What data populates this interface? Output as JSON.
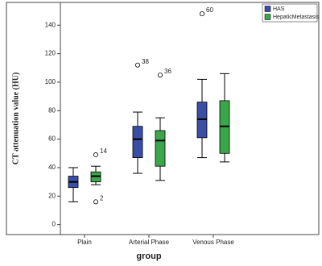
{
  "chart_data": {
    "type": "box",
    "y_label": "CT attenuation value (HU)",
    "x_label": "group",
    "categories": [
      "Plain",
      "Arterial Phase",
      "Venous Phase"
    ],
    "ylim": [
      -7,
      156
    ],
    "yticks": [
      0,
      20,
      40,
      60,
      80,
      100,
      120,
      140
    ],
    "legend": "top-right",
    "series": [
      {
        "name": "HAS",
        "color": "#3b4ea6",
        "boxes": [
          {
            "min": 16,
            "q1": 26,
            "median": 30,
            "q3": 34,
            "max": 40,
            "outliers": []
          },
          {
            "min": 36,
            "q1": 47,
            "median": 60,
            "q3": 69,
            "max": 79,
            "outliers": [
              {
                "id": "38",
                "value": 112
              }
            ]
          },
          {
            "min": 47,
            "q1": 61,
            "median": 74,
            "q3": 86,
            "max": 102,
            "outliers": [
              {
                "id": "60",
                "value": 148
              }
            ]
          }
        ]
      },
      {
        "name": "HepaticMetastasis",
        "color": "#3aa84a",
        "boxes": [
          {
            "min": 28,
            "q1": 30,
            "median": 34,
            "q3": 37,
            "max": 41,
            "outliers": [
              {
                "id": "14",
                "value": 49
              },
              {
                "id": "2",
                "value": 16
              }
            ]
          },
          {
            "min": 31,
            "q1": 41,
            "median": 59,
            "q3": 66,
            "max": 75,
            "outliers": [
              {
                "id": "36",
                "value": 105
              }
            ]
          },
          {
            "min": 44,
            "q1": 50,
            "median": 69,
            "q3": 87,
            "max": 106,
            "outliers": []
          }
        ]
      }
    ]
  }
}
